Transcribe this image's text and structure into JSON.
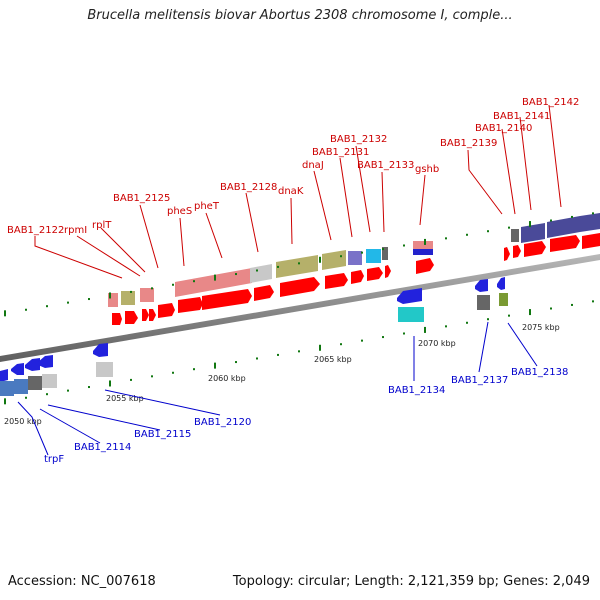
{
  "title": "Brucella melitensis biovar Abortus 2308 chromosome I, comple...",
  "footer": {
    "accession": "Accession: NC_007618",
    "summary": "Topology: circular; Length: 2,121,359 bp; Genes: 2,049"
  },
  "colors": {
    "backbone": "#888888",
    "forward_label": "#cc0000",
    "reverse_label": "#0000cc",
    "tick": "#117711"
  },
  "scale_labels": [
    "2050 kbp",
    "2055 kbp",
    "2060 kbp",
    "2065 kbp",
    "2070 kbp",
    "2075 kbp"
  ],
  "forward_labels": [
    "BAB1_2122",
    "rpmI",
    "rplT",
    "BAB1_2125",
    "pheS",
    "pheT",
    "BAB1_2128",
    "dnaK",
    "dnaJ",
    "BAB1_2131",
    "BAB1_2132",
    "BAB1_2133",
    "gshb",
    "BAB1_2139",
    "BAB1_2140",
    "BAB1_2141",
    "BAB1_2142"
  ],
  "reverse_labels": [
    "trpF",
    "BAB1_2114",
    "BAB1_2115",
    "BAB1_2120",
    "BAB1_2134",
    "BAB1_2137",
    "BAB1_2138"
  ]
}
